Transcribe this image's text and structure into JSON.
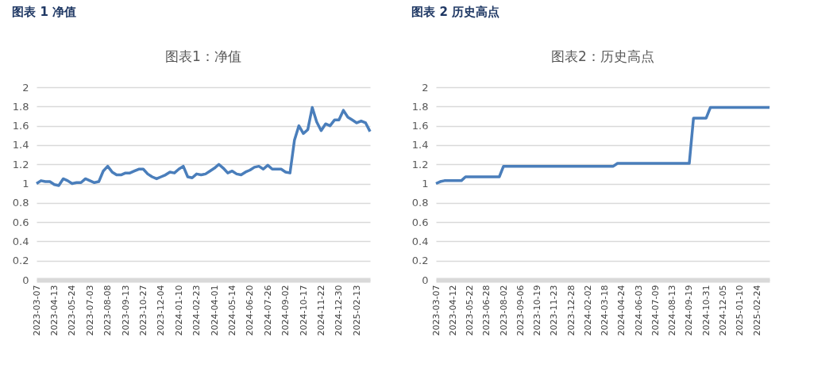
{
  "chart_data": [
    {
      "type": "line",
      "title": "图表 1 净值",
      "subtitle": "图表1：净值",
      "color": "#4a7ebb",
      "grid": "y",
      "ylim": [
        0,
        2
      ],
      "yticks": [
        0,
        0.2,
        0.4,
        0.6,
        0.8,
        1,
        1.2,
        1.4,
        1.6,
        1.8,
        2
      ],
      "categories": [
        "2023-03-07",
        null,
        null,
        null,
        "2023-04-13",
        null,
        null,
        null,
        "2023-05-24",
        null,
        null,
        null,
        "2023-07-03",
        null,
        null,
        null,
        "2023-08-08",
        null,
        null,
        null,
        "2023-09-13",
        null,
        null,
        null,
        "2023-10-27",
        null,
        null,
        null,
        "2023-12-04",
        null,
        null,
        null,
        "2024-01-10",
        null,
        null,
        null,
        "2024-02-23",
        null,
        null,
        null,
        "2024-04-01",
        null,
        null,
        null,
        "2024-05-14",
        null,
        null,
        null,
        "2024-06-20",
        null,
        null,
        null,
        "2024-07-26",
        null,
        null,
        null,
        "2024-09-02",
        null,
        null,
        null,
        "2024-10-17",
        null,
        null,
        null,
        "2024-11-22",
        null,
        null,
        null,
        "2024-12-30",
        null,
        null,
        null,
        "2025-02-13",
        null,
        null,
        null
      ],
      "values": [
        1.0,
        1.03,
        1.02,
        1.02,
        0.99,
        0.98,
        1.05,
        1.03,
        1.0,
        1.01,
        1.01,
        1.05,
        1.03,
        1.01,
        1.02,
        1.13,
        1.18,
        1.12,
        1.09,
        1.09,
        1.11,
        1.11,
        1.13,
        1.15,
        1.15,
        1.1,
        1.07,
        1.05,
        1.07,
        1.09,
        1.12,
        1.11,
        1.15,
        1.18,
        1.07,
        1.06,
        1.1,
        1.09,
        1.1,
        1.13,
        1.16,
        1.2,
        1.16,
        1.11,
        1.13,
        1.1,
        1.09,
        1.12,
        1.14,
        1.17,
        1.18,
        1.15,
        1.19,
        1.15,
        1.15,
        1.15,
        1.12,
        1.11,
        1.45,
        1.6,
        1.52,
        1.56,
        1.79,
        1.64,
        1.55,
        1.62,
        1.6,
        1.66,
        1.66,
        1.76,
        1.69,
        1.66,
        1.63,
        1.65,
        1.63,
        1.54
      ]
    },
    {
      "type": "line",
      "title": "图表 2 历史高点",
      "subtitle": "图表2：历史高点",
      "color": "#4a7ebb",
      "grid": "y",
      "ylim": [
        0,
        2
      ],
      "yticks": [
        0,
        0.2,
        0.4,
        0.6,
        0.8,
        1,
        1.2,
        1.4,
        1.6,
        1.8,
        2
      ],
      "categories": [
        "2023-03-07",
        null,
        null,
        null,
        "2023-04-12",
        null,
        null,
        null,
        "2023-05-22",
        null,
        null,
        null,
        "2023-06-28",
        null,
        null,
        null,
        "2023-08-02",
        null,
        null,
        null,
        "2023-09-06",
        null,
        null,
        null,
        "2023-10-19",
        null,
        null,
        null,
        "2023-11-23",
        null,
        null,
        null,
        "2023-12-28",
        null,
        null,
        null,
        "2024-02-02",
        null,
        null,
        null,
        "2024-03-18",
        null,
        null,
        null,
        "2024-04-24",
        null,
        null,
        null,
        "2024-06-03",
        null,
        null,
        null,
        "2024-07-09",
        null,
        null,
        null,
        "2024-08-13",
        null,
        null,
        null,
        "2024-09-19",
        null,
        null,
        null,
        "2024-10-31",
        null,
        null,
        null,
        "2024-12-05",
        null,
        null,
        null,
        "2025-01-10",
        null,
        null,
        null,
        "2025-02-24",
        null,
        null,
        null
      ],
      "values": [
        1.0,
        1.02,
        1.03,
        1.03,
        1.03,
        1.03,
        1.03,
        1.07,
        1.07,
        1.07,
        1.07,
        1.07,
        1.07,
        1.07,
        1.07,
        1.07,
        1.18,
        1.18,
        1.18,
        1.18,
        1.18,
        1.18,
        1.18,
        1.18,
        1.18,
        1.18,
        1.18,
        1.18,
        1.18,
        1.18,
        1.18,
        1.18,
        1.18,
        1.18,
        1.18,
        1.18,
        1.18,
        1.18,
        1.18,
        1.18,
        1.18,
        1.18,
        1.18,
        1.21,
        1.21,
        1.21,
        1.21,
        1.21,
        1.21,
        1.21,
        1.21,
        1.21,
        1.21,
        1.21,
        1.21,
        1.21,
        1.21,
        1.21,
        1.21,
        1.21,
        1.21,
        1.68,
        1.68,
        1.68,
        1.68,
        1.79,
        1.79,
        1.79,
        1.79,
        1.79,
        1.79,
        1.79,
        1.79,
        1.79,
        1.79,
        1.79,
        1.79,
        1.79,
        1.79,
        1.79
      ]
    }
  ]
}
